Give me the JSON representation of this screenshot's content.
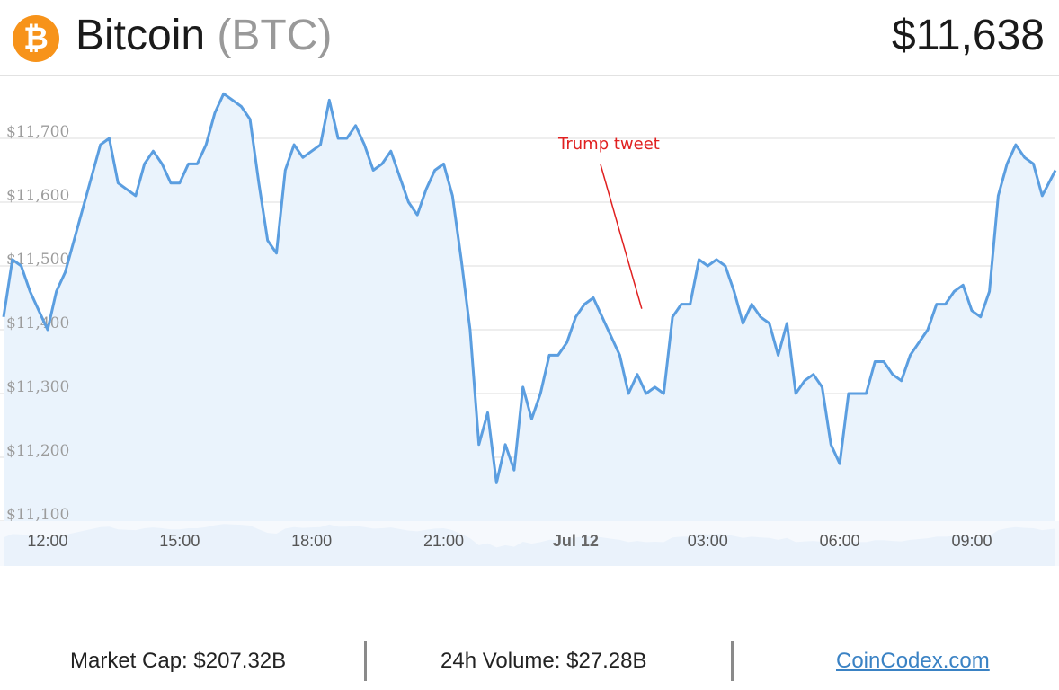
{
  "header": {
    "logo_glyph": "₿",
    "coin_name": "Bitcoin",
    "coin_symbol": "(BTC)",
    "price": "$11,638"
  },
  "colors": {
    "line": "#5b9ee0",
    "area": "#eaf3fc",
    "grid": "#dcdcdc",
    "annotation": "#e02020",
    "accent_logo": "#f7931a",
    "link": "#3a82c4"
  },
  "chart_data": {
    "type": "area",
    "ylim": [
      11100,
      11800
    ],
    "y_ticks": [
      11100,
      11200,
      11300,
      11400,
      11500,
      11600,
      11700
    ],
    "y_tick_labels": [
      "$11,100",
      "$11,200",
      "$11,300",
      "$11,400",
      "$11,500",
      "$11,600",
      "$11,700"
    ],
    "x_ticks": [
      1,
      4,
      7,
      10,
      13,
      16,
      19,
      22
    ],
    "x_tick_labels": [
      "12:00",
      "15:00",
      "18:00",
      "21:00",
      "Jul 12",
      "03:00",
      "06:00",
      "09:00"
    ],
    "xlim": [
      0,
      23.9
    ],
    "grid": true,
    "series": [
      {
        "x": [
          0.0,
          0.2,
          0.4,
          0.6,
          0.8,
          1.0,
          1.2,
          1.4,
          1.6,
          1.8,
          2.0,
          2.2,
          2.4,
          2.6,
          2.8,
          3.0,
          3.2,
          3.4,
          3.6,
          3.8,
          4.0,
          4.2,
          4.4,
          4.6,
          4.8,
          5.0,
          5.2,
          5.4,
          5.6,
          5.8,
          6.0,
          6.2,
          6.4,
          6.6,
          6.8,
          7.0,
          7.2,
          7.4,
          7.6,
          7.8,
          8.0,
          8.2,
          8.4,
          8.6,
          8.8,
          9.0,
          9.2,
          9.4,
          9.6,
          9.8,
          10.0,
          10.2,
          10.4,
          10.6,
          10.8,
          11.0,
          11.2,
          11.4,
          11.6,
          11.8,
          12.0,
          12.2,
          12.4,
          12.6,
          12.8,
          13.0,
          13.2,
          13.4,
          13.6,
          13.8,
          14.0,
          14.2,
          14.4,
          14.6,
          14.8,
          15.0,
          15.2,
          15.4,
          15.6,
          15.8,
          16.0,
          16.2,
          16.4,
          16.6,
          16.8,
          17.0,
          17.2,
          17.4,
          17.6,
          17.8,
          18.0,
          18.2,
          18.4,
          18.6,
          18.8,
          19.0,
          19.2,
          19.4,
          19.6,
          19.8,
          20.0,
          20.2,
          20.4,
          20.6,
          20.8,
          21.0,
          21.2,
          21.4,
          21.6,
          21.8,
          22.0,
          22.2,
          22.4,
          22.6,
          22.8,
          23.0,
          23.2,
          23.4,
          23.6,
          23.9
        ],
        "y": [
          11420,
          11510,
          11500,
          11460,
          11430,
          11400,
          11460,
          11490,
          11540,
          11590,
          11640,
          11690,
          11700,
          11630,
          11620,
          11610,
          11660,
          11680,
          11660,
          11630,
          11630,
          11660,
          11660,
          11690,
          11740,
          11770,
          11760,
          11750,
          11730,
          11630,
          11540,
          11520,
          11650,
          11690,
          11670,
          11680,
          11690,
          11760,
          11700,
          11700,
          11720,
          11690,
          11650,
          11660,
          11680,
          11640,
          11600,
          11580,
          11620,
          11650,
          11660,
          11610,
          11510,
          11400,
          11220,
          11270,
          11160,
          11220,
          11180,
          11310,
          11260,
          11300,
          11360,
          11360,
          11380,
          11420,
          11440,
          11450,
          11420,
          11390,
          11360,
          11300,
          11330,
          11300,
          11310,
          11300,
          11420,
          11440,
          11440,
          11510,
          11500,
          11510,
          11500,
          11460,
          11410,
          11440,
          11420,
          11410,
          11360,
          11410,
          11300,
          11320,
          11330,
          11310,
          11220,
          11190,
          11300,
          11300,
          11300,
          11350,
          11350,
          11330,
          11320,
          11360,
          11380,
          11400,
          11440,
          11440,
          11460,
          11470,
          11430,
          11420,
          11460,
          11610,
          11660,
          11690,
          11670,
          11660,
          11610,
          11650
        ]
      }
    ],
    "annotations": [
      {
        "text": "Trump tweet",
        "x": 14.5,
        "y": 11430
      }
    ]
  },
  "footer": {
    "market_cap": "Market Cap: $207.32B",
    "volume": "24h Volume: $27.28B",
    "site_link": "CoinCodex.com"
  }
}
